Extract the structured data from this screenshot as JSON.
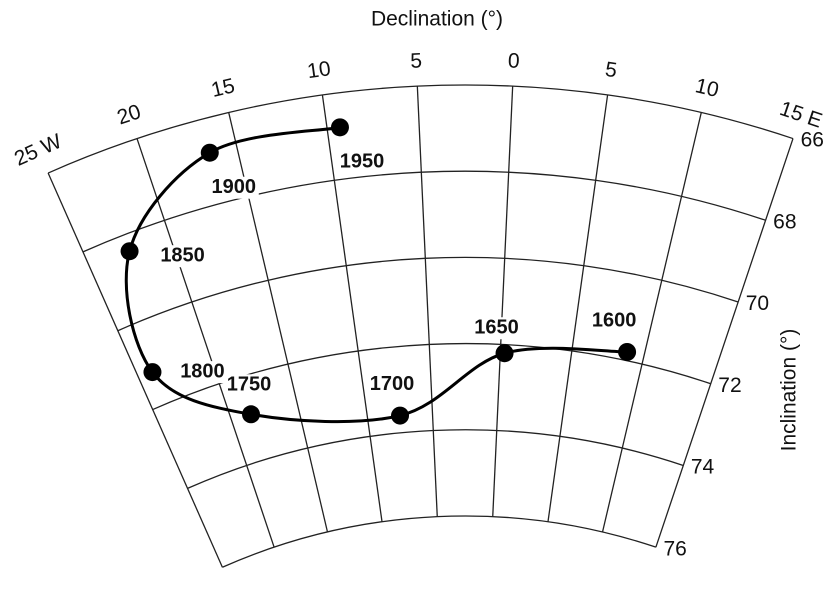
{
  "chart_data": {
    "type": "scatter",
    "projection": "fan",
    "xlabel": "Declination (°)",
    "ylabel": "Inclination (°)",
    "xlim": [
      -25,
      15
    ],
    "ylim": [
      66,
      76
    ],
    "xticks": [
      {
        "value": -25,
        "label": "25 W"
      },
      {
        "value": -20,
        "label": "20"
      },
      {
        "value": -15,
        "label": "15"
      },
      {
        "value": -10,
        "label": "10"
      },
      {
        "value": -5,
        "label": "5"
      },
      0,
      5,
      10,
      {
        "value": 15,
        "label": "15 E"
      }
    ],
    "yticks": [
      66,
      68,
      70,
      72,
      74,
      76
    ],
    "grid": true,
    "line": true,
    "color": "#000000",
    "point_labels": [
      "1600",
      "1650",
      "1700",
      "1750",
      "1800",
      "1850",
      "1900",
      "1950"
    ],
    "x": [
      8.8,
      0.3,
      -7.5,
      -18.5,
      -24,
      -22.5,
      -16.5,
      -9.3
    ],
    "values": [
      71.8,
      72.2,
      73.6,
      72.9,
      71.2,
      68.4,
      66.8,
      66.8
    ]
  }
}
